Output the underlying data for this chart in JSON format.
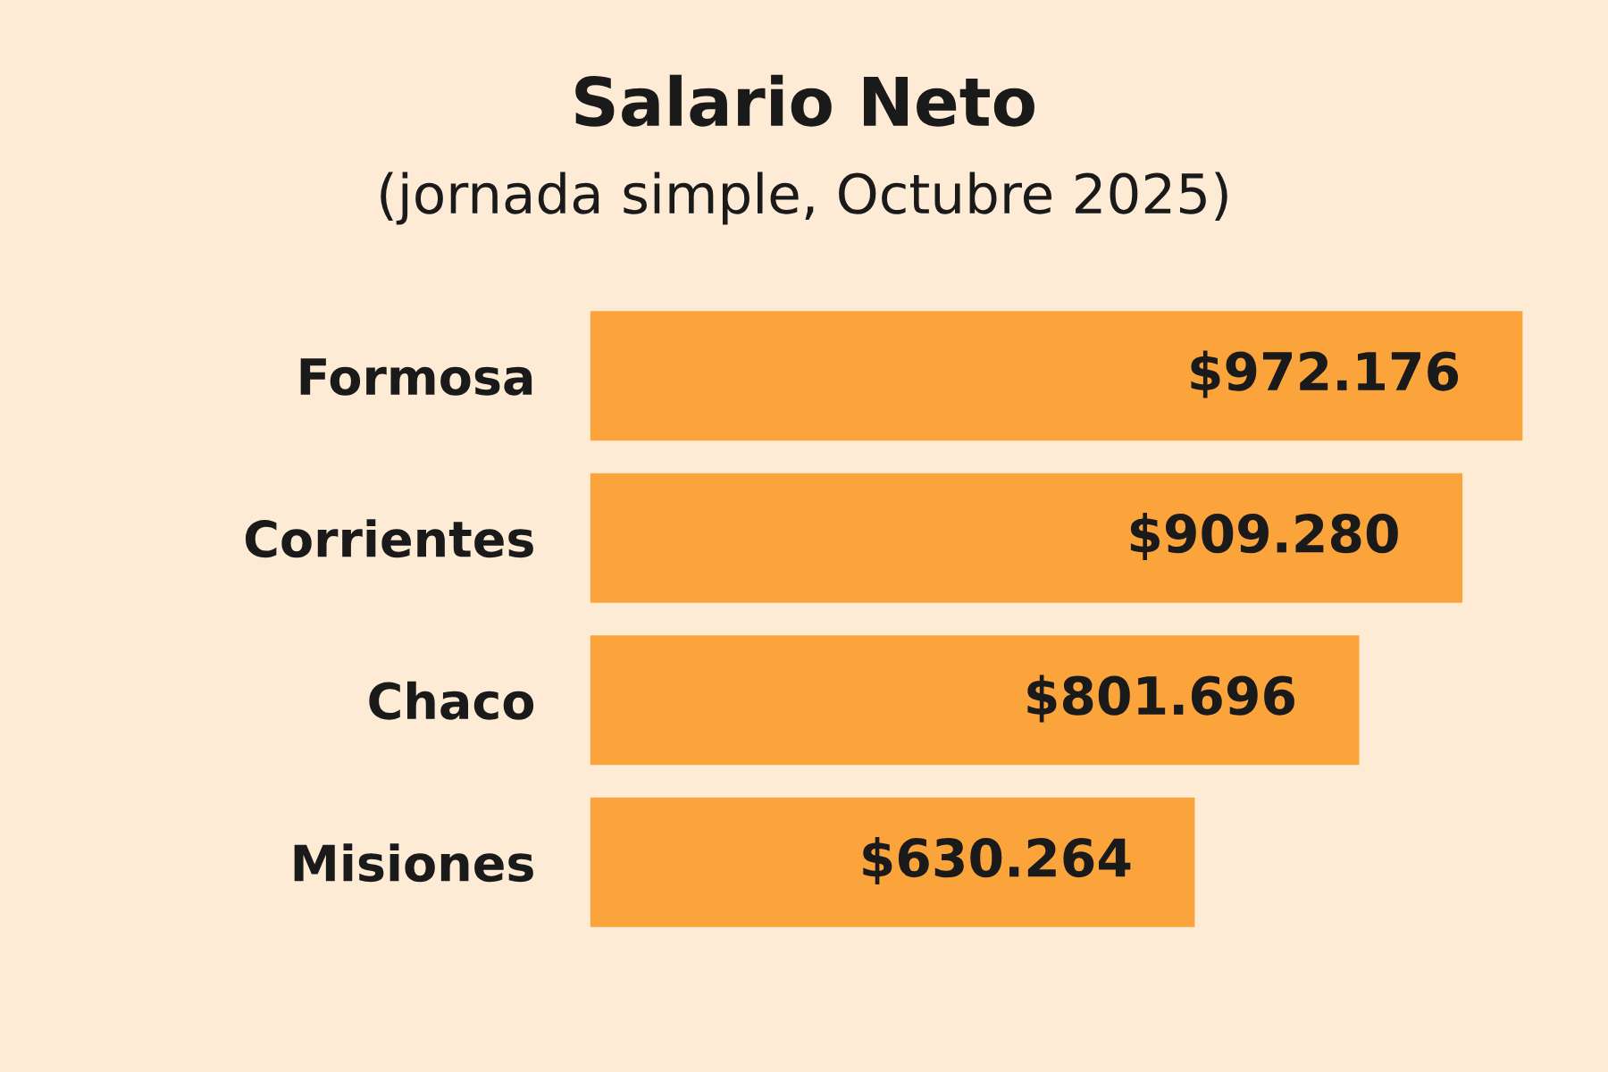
{
  "chart_data": {
    "type": "bar",
    "orientation": "horizontal",
    "title": "Salario Neto",
    "subtitle": "(jornada simple, Octubre 2025)",
    "categories": [
      "Formosa",
      "Corrientes",
      "Chaco",
      "Misiones"
    ],
    "values": [
      972176,
      909280,
      801696,
      630264
    ],
    "value_labels": [
      "$972.176",
      "$909.280",
      "$801.696",
      "$630.264"
    ],
    "color": "#fba43b",
    "grid": false,
    "legend": false
  }
}
